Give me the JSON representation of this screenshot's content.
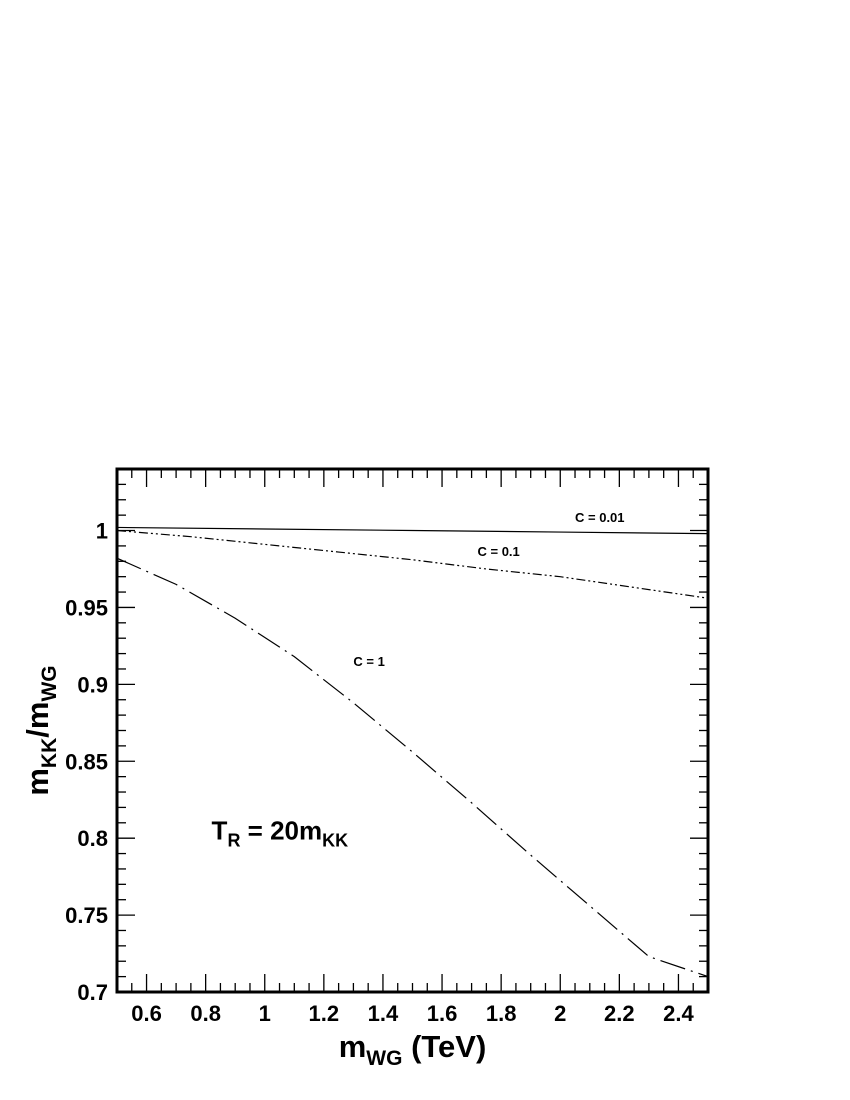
{
  "chart_data": {
    "type": "line",
    "xlabel": {
      "main": "m",
      "sub": "WG",
      "suffix": " (TeV)"
    },
    "ylabel": {
      "main": "m",
      "sub1": "KK",
      "sep": "/m",
      "sub2": "WG"
    },
    "xlim": [
      0.5,
      2.5
    ],
    "ylim": [
      0.7,
      1.04
    ],
    "x_ticks": [
      {
        "value": 0.6,
        "label": "0.6"
      },
      {
        "value": 0.8,
        "label": "0.8"
      },
      {
        "value": 1.0,
        "label": "1"
      },
      {
        "value": 1.2,
        "label": "1.2"
      },
      {
        "value": 1.4,
        "label": "1.4"
      },
      {
        "value": 1.6,
        "label": "1.6"
      },
      {
        "value": 1.8,
        "label": "1.8"
      },
      {
        "value": 2.0,
        "label": "2"
      },
      {
        "value": 2.2,
        "label": "2.2"
      },
      {
        "value": 2.4,
        "label": "2.4"
      }
    ],
    "y_ticks": [
      {
        "value": 0.7,
        "label": "0.7"
      },
      {
        "value": 0.75,
        "label": "0.75"
      },
      {
        "value": 0.8,
        "label": "0.8"
      },
      {
        "value": 0.85,
        "label": "0.85"
      },
      {
        "value": 0.9,
        "label": "0.9"
      },
      {
        "value": 0.95,
        "label": "0.95"
      },
      {
        "value": 1.0,
        "label": "1"
      }
    ],
    "grid": false,
    "series": [
      {
        "name": "C = 0.01",
        "dash": "solid",
        "x": [
          0.5,
          1.0,
          1.5,
          2.0,
          2.5
        ],
        "y": [
          1.002,
          1.001,
          1.0,
          0.999,
          0.998
        ],
        "label_at": [
          2.05,
          1.0055
        ]
      },
      {
        "name": "C = 0.1",
        "dash": "dash-dot-dot",
        "x": [
          0.5,
          0.75,
          1.0,
          1.25,
          1.5,
          1.75,
          2.0,
          2.25,
          2.5
        ],
        "y": [
          1.0,
          0.996,
          0.991,
          0.986,
          0.981,
          0.975,
          0.97,
          0.963,
          0.956
        ],
        "label_at": [
          1.72,
          0.9835
        ]
      },
      {
        "name": "C = 1",
        "dash": "long-dash-dot",
        "x": [
          0.5,
          0.7,
          0.9,
          1.1,
          1.3,
          1.5,
          1.7,
          1.9,
          2.1,
          2.3,
          2.5
        ],
        "y": [
          0.982,
          0.965,
          0.943,
          0.918,
          0.888,
          0.856,
          0.823,
          0.789,
          0.756,
          0.723,
          0.71
        ],
        "label_at": [
          1.3,
          0.912
        ]
      }
    ],
    "annotation": {
      "main": "T",
      "sub1": "R",
      "mid": " = 20m",
      "sub2": "KK",
      "at": [
        0.82,
        0.799
      ]
    }
  }
}
